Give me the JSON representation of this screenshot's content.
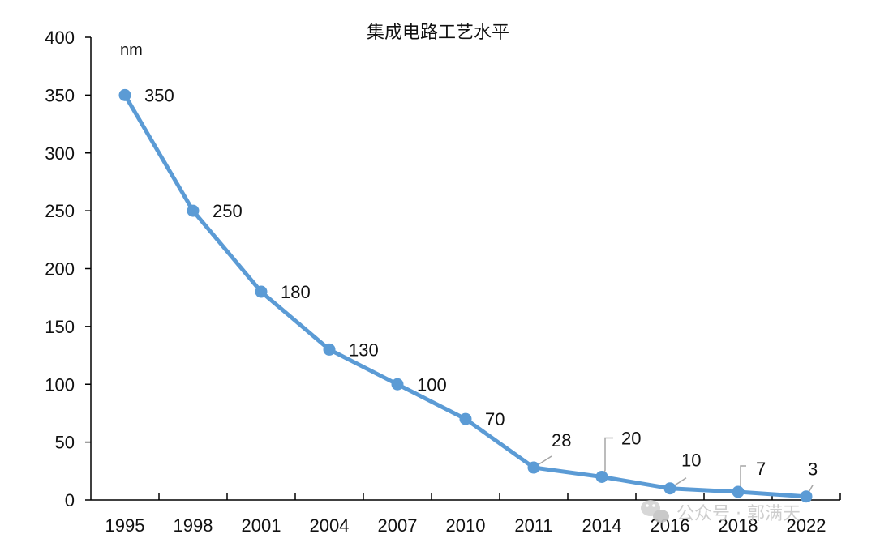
{
  "chart_data": {
    "type": "line",
    "title": "集成电路工艺水平",
    "unit_label": "nm",
    "categories": [
      "1995",
      "1998",
      "2001",
      "2004",
      "2007",
      "2010",
      "2011",
      "2014",
      "2016",
      "2018",
      "2022"
    ],
    "series": [
      {
        "values": [
          350,
          250,
          180,
          130,
          100,
          70,
          28,
          20,
          10,
          7,
          3
        ]
      }
    ],
    "data_labels": [
      "350",
      "250",
      "180",
      "130",
      "100",
      "70",
      "28",
      "20",
      "10",
      "7",
      "3"
    ],
    "ylim": [
      0,
      400
    ],
    "yticks": [
      "0",
      "50",
      "100",
      "150",
      "200",
      "250",
      "300",
      "350",
      "400"
    ],
    "grid": false,
    "legend": "none",
    "line_color": "#5b9bd5",
    "axis_color": "#000000",
    "leader_line_color": "#a6a6a6"
  },
  "watermark": {
    "icon": "wechat-icon",
    "text": "公众号 · 郭满天"
  }
}
